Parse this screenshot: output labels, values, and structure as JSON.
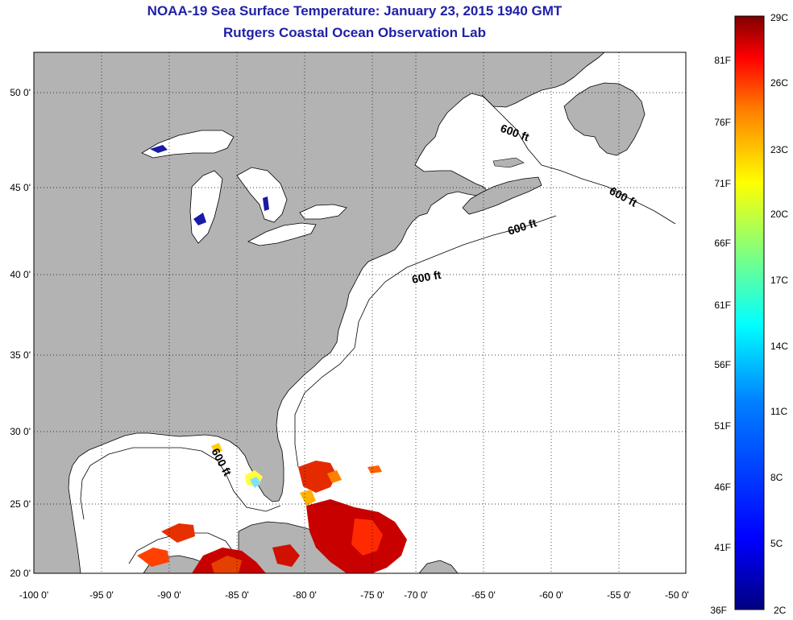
{
  "title": {
    "line1": "NOAA-19 Sea Surface Temperature:  January 23, 2015 1940 GMT",
    "line2": "Rutgers Coastal Ocean Observation Lab"
  },
  "map": {
    "lon_labels": [
      "-100 0'",
      "-95 0'",
      "-90 0'",
      "-85 0'",
      "-80 0'",
      "-75 0'",
      "-70 0'",
      "-65 0'",
      "-60 0'",
      "-55 0'",
      "-50 0'"
    ],
    "lat_labels": [
      "20 0'",
      "25 0'",
      "30 0'",
      "35 0'",
      "40 0'",
      "45 0'",
      "50 0'"
    ],
    "isobath_label": "600 ft",
    "colors": {
      "land": "#b3b3b3",
      "ocean": "#ffffff",
      "grid": "#000000"
    }
  },
  "colorbar": {
    "celsius_labels": [
      "29C",
      "26C",
      "23C",
      "20C",
      "17C",
      "14C",
      "11C",
      "8C",
      "5C",
      "2C"
    ],
    "fahrenheit_labels": [
      "81F",
      "76F",
      "71F",
      "66F",
      "61F",
      "56F",
      "51F",
      "46F",
      "41F",
      "36F"
    ],
    "colors": [
      "#800000",
      "#ff0000",
      "#ff8000",
      "#ffff00",
      "#80ff80",
      "#00ffff",
      "#0080ff",
      "#0000ff",
      "#000080"
    ]
  }
}
